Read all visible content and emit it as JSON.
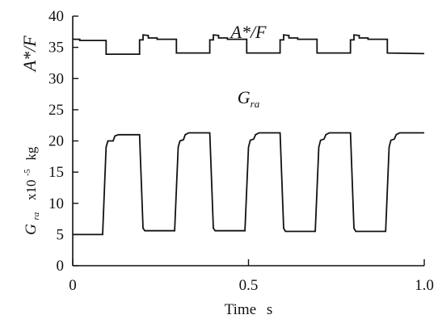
{
  "chart_data": {
    "type": "line",
    "xlabel": "Time",
    "xunit": "s",
    "xlim": [
      0,
      1.0
    ],
    "ylim": [
      0,
      40
    ],
    "xticks": [
      {
        "value": 0,
        "label": "0"
      },
      {
        "value": 0.5,
        "label": "0.5"
      },
      {
        "value": 1.0,
        "label": "1.0"
      }
    ],
    "yticks": [
      {
        "value": 0,
        "label": "0"
      },
      {
        "value": 5,
        "label": "5"
      },
      {
        "value": 10,
        "label": "10"
      },
      {
        "value": 15,
        "label": "15"
      },
      {
        "value": 20,
        "label": "20"
      },
      {
        "value": 25,
        "label": "25"
      },
      {
        "value": 30,
        "label": "30"
      },
      {
        "value": 35,
        "label": "35"
      },
      {
        "value": 40,
        "label": "40"
      }
    ],
    "ylabel_upper": "A*/F",
    "ylabel_lower": {
      "symbol": "G",
      "sub": "ra",
      "unit_base": "x10",
      "unit_exp": "-5",
      "unit_tail": "kg"
    },
    "grid": false,
    "series": [
      {
        "name": "A*/F",
        "label_parts": {
          "text": "A*/F"
        },
        "label_anchor": {
          "x": 0.5,
          "y": 36.5
        },
        "points": [
          [
            0.0,
            36.3
          ],
          [
            0.02,
            36.3
          ],
          [
            0.02,
            36.1
          ],
          [
            0.095,
            36.1
          ],
          [
            0.095,
            33.9
          ],
          [
            0.19,
            33.9
          ],
          [
            0.19,
            36.2
          ],
          [
            0.2,
            36.2
          ],
          [
            0.2,
            37.0
          ],
          [
            0.215,
            36.9
          ],
          [
            0.215,
            36.5
          ],
          [
            0.24,
            36.5
          ],
          [
            0.24,
            36.3
          ],
          [
            0.295,
            36.3
          ],
          [
            0.295,
            34.1
          ],
          [
            0.39,
            34.1
          ],
          [
            0.39,
            36.2
          ],
          [
            0.4,
            36.2
          ],
          [
            0.4,
            37.0
          ],
          [
            0.415,
            36.9
          ],
          [
            0.415,
            36.5
          ],
          [
            0.44,
            36.5
          ],
          [
            0.44,
            36.3
          ],
          [
            0.495,
            36.3
          ],
          [
            0.495,
            34.1
          ],
          [
            0.59,
            34.1
          ],
          [
            0.59,
            36.2
          ],
          [
            0.6,
            36.2
          ],
          [
            0.6,
            37.0
          ],
          [
            0.615,
            36.9
          ],
          [
            0.615,
            36.5
          ],
          [
            0.64,
            36.5
          ],
          [
            0.64,
            36.3
          ],
          [
            0.695,
            36.3
          ],
          [
            0.695,
            34.1
          ],
          [
            0.79,
            34.1
          ],
          [
            0.79,
            36.2
          ],
          [
            0.8,
            36.2
          ],
          [
            0.8,
            37.0
          ],
          [
            0.815,
            36.9
          ],
          [
            0.815,
            36.5
          ],
          [
            0.84,
            36.5
          ],
          [
            0.84,
            36.3
          ],
          [
            0.895,
            36.3
          ],
          [
            0.895,
            34.1
          ],
          [
            1.0,
            34.0
          ]
        ]
      },
      {
        "name": "Gra",
        "label_parts": {
          "symbol": "G",
          "sub": "ra"
        },
        "label_anchor": {
          "x": 0.5,
          "y": 26
        },
        "points": [
          [
            0.0,
            5.0
          ],
          [
            0.085,
            5.0
          ],
          [
            0.095,
            19.0
          ],
          [
            0.1,
            20.0
          ],
          [
            0.115,
            20.0
          ],
          [
            0.12,
            20.8
          ],
          [
            0.13,
            21.0
          ],
          [
            0.19,
            21.0
          ],
          [
            0.2,
            6.0
          ],
          [
            0.205,
            5.6
          ],
          [
            0.29,
            5.6
          ],
          [
            0.3,
            19.0
          ],
          [
            0.305,
            20.0
          ],
          [
            0.315,
            20.2
          ],
          [
            0.32,
            21.0
          ],
          [
            0.33,
            21.3
          ],
          [
            0.39,
            21.3
          ],
          [
            0.4,
            6.0
          ],
          [
            0.405,
            5.6
          ],
          [
            0.49,
            5.6
          ],
          [
            0.5,
            19.0
          ],
          [
            0.505,
            20.1
          ],
          [
            0.515,
            20.3
          ],
          [
            0.52,
            21.0
          ],
          [
            0.53,
            21.3
          ],
          [
            0.59,
            21.3
          ],
          [
            0.6,
            6.0
          ],
          [
            0.605,
            5.5
          ],
          [
            0.69,
            5.5
          ],
          [
            0.7,
            19.0
          ],
          [
            0.705,
            20.1
          ],
          [
            0.715,
            20.3
          ],
          [
            0.72,
            21.0
          ],
          [
            0.73,
            21.3
          ],
          [
            0.79,
            21.3
          ],
          [
            0.8,
            6.0
          ],
          [
            0.805,
            5.5
          ],
          [
            0.89,
            5.5
          ],
          [
            0.9,
            19.0
          ],
          [
            0.905,
            20.1
          ],
          [
            0.915,
            20.3
          ],
          [
            0.92,
            21.0
          ],
          [
            0.93,
            21.3
          ],
          [
            1.0,
            21.3
          ]
        ]
      }
    ]
  }
}
